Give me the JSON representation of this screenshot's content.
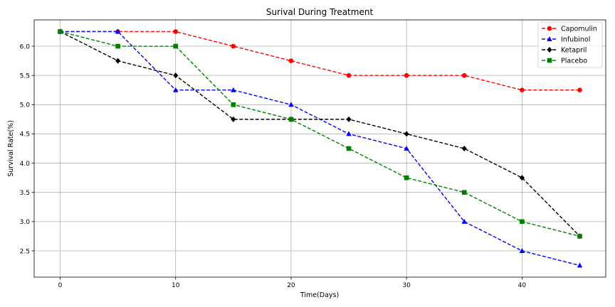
{
  "chart_data": {
    "type": "line",
    "title": "Surival During Treatment",
    "xlabel": "Time(Days)",
    "ylabel": "Survival Rate(%)",
    "xlim": [
      -2.25,
      47.25
    ],
    "ylim": [
      2.05,
      6.45
    ],
    "xticks": [
      0,
      10,
      20,
      30,
      40
    ],
    "yticks": [
      2.5,
      3.0,
      3.5,
      4.0,
      4.5,
      5.0,
      5.5,
      6.0
    ],
    "grid": true,
    "legend_position": "top-right",
    "x": [
      0,
      5,
      10,
      15,
      20,
      25,
      30,
      35,
      40,
      45
    ],
    "series": [
      {
        "name": "Capomulin",
        "color": "#ff0000",
        "marker": "circle",
        "values": [
          6.25,
          6.25,
          6.25,
          6.0,
          5.75,
          5.5,
          5.5,
          5.5,
          5.25,
          5.25
        ]
      },
      {
        "name": "Infubinol",
        "color": "#0000ff",
        "marker": "triangle",
        "values": [
          6.25,
          6.25,
          5.25,
          5.25,
          5.0,
          4.5,
          4.25,
          3.0,
          2.5,
          2.25
        ]
      },
      {
        "name": "Ketapril",
        "color": "#000000",
        "marker": "diamond",
        "values": [
          6.25,
          5.75,
          5.5,
          4.75,
          4.75,
          4.75,
          4.5,
          4.25,
          3.75,
          2.75
        ]
      },
      {
        "name": "Placebo",
        "color": "#008000",
        "marker": "square",
        "values": [
          6.25,
          6.0,
          6.0,
          5.0,
          4.75,
          4.25,
          3.75,
          3.5,
          3.0,
          2.75
        ]
      }
    ]
  }
}
